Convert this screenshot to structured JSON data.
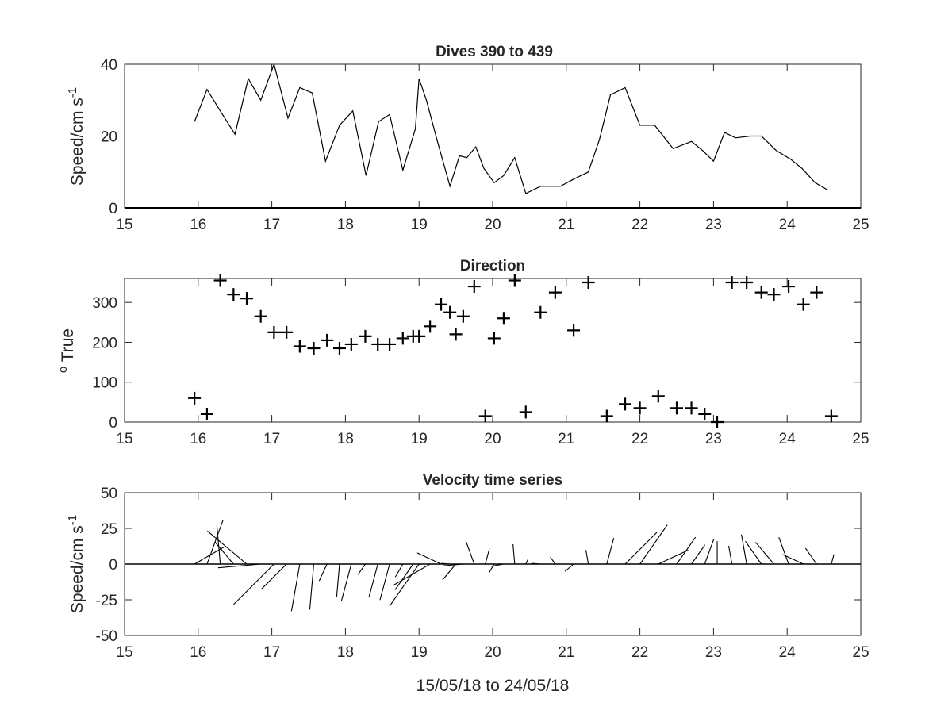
{
  "chart_data": [
    {
      "type": "line",
      "title": "Dives 390 to 439",
      "ylabel": "Speed/cm s",
      "ylabel_superscript": "-1",
      "xlabel": "",
      "xlim": [
        15,
        25
      ],
      "ylim": [
        0,
        40
      ],
      "xticks": [
        15,
        16,
        17,
        18,
        19,
        20,
        21,
        22,
        23,
        24,
        25
      ],
      "yticks": [
        0,
        20,
        40
      ],
      "grid": false,
      "series": [
        {
          "color": "#000000",
          "x": [
            15.95,
            16.12,
            16.3,
            16.5,
            16.68,
            16.85,
            17.03,
            17.22,
            17.38,
            17.55,
            17.73,
            17.92,
            18.1,
            18.28,
            18.45,
            18.6,
            18.78,
            18.95,
            19.0,
            19.1,
            19.25,
            19.42,
            19.55,
            19.65,
            19.77,
            19.88,
            20.02,
            20.15,
            20.3,
            20.45,
            20.65,
            20.85,
            20.92,
            21.1,
            21.3,
            21.45,
            21.6,
            21.8,
            22.0,
            22.2,
            22.45,
            22.7,
            22.85,
            23.0,
            23.15,
            23.3,
            23.5,
            23.65,
            23.85,
            24.05,
            24.2,
            24.38,
            24.55
          ],
          "y": [
            24,
            33,
            27,
            20.5,
            36,
            30,
            40,
            25,
            33.5,
            32,
            13,
            23,
            27,
            9,
            24,
            26,
            10.5,
            22,
            36,
            30,
            18.5,
            6,
            14.5,
            14,
            17,
            11,
            7,
            9,
            14,
            4,
            6,
            6,
            6,
            8,
            10,
            19,
            31.5,
            33.5,
            23,
            23,
            16.5,
            18.5,
            16,
            13,
            21,
            19.5,
            20,
            20,
            16,
            13.5,
            11,
            7,
            5
          ]
        }
      ]
    },
    {
      "type": "scatter",
      "title": "Direction",
      "ylabel": "True",
      "ylabel_superscript": "o",
      "xlabel": "",
      "xlim": [
        15,
        25
      ],
      "ylim": [
        0,
        360
      ],
      "xticks": [
        15,
        16,
        17,
        18,
        19,
        20,
        21,
        22,
        23,
        24,
        25
      ],
      "yticks": [
        0,
        100,
        200,
        300
      ],
      "grid": false,
      "marker": "+",
      "series": [
        {
          "color": "#000000",
          "x": [
            15.95,
            16.12,
            16.3,
            16.48,
            16.66,
            16.85,
            17.03,
            17.2,
            17.38,
            17.57,
            17.75,
            17.92,
            18.08,
            18.27,
            18.44,
            18.6,
            18.78,
            18.92,
            19.0,
            19.15,
            19.3,
            19.42,
            19.5,
            19.6,
            19.75,
            19.9,
            20.02,
            20.15,
            20.3,
            20.45,
            20.65,
            20.85,
            21.1,
            21.3,
            21.55,
            21.8,
            22.0,
            22.25,
            22.5,
            22.7,
            22.88,
            23.05,
            23.25,
            23.45,
            23.65,
            23.82,
            24.02,
            24.22,
            24.4,
            24.6
          ],
          "y": [
            60,
            20,
            355,
            320,
            310,
            265,
            225,
            225,
            190,
            185,
            205,
            185,
            195,
            215,
            195,
            195,
            210,
            215,
            215,
            240,
            295,
            275,
            220,
            265,
            340,
            15,
            210,
            260,
            355,
            25,
            275,
            325,
            230,
            350,
            15,
            45,
            35,
            65,
            35,
            35,
            20,
            0,
            350,
            350,
            325,
            320,
            340,
            295,
            325,
            15
          ]
        }
      ]
    },
    {
      "type": "line",
      "subtype": "quiver",
      "title": "Velocity time series",
      "ylabel": "Speed/cm s",
      "ylabel_superscript": "-1",
      "xlabel": "15/05/18 to 24/05/18",
      "xlim": [
        15,
        25
      ],
      "ylim": [
        -50,
        50
      ],
      "xticks": [
        15,
        16,
        17,
        18,
        19,
        20,
        21,
        22,
        23,
        24,
        25
      ],
      "yticks": [
        -50,
        -25,
        0,
        25,
        50
      ],
      "grid": false,
      "series": [
        {
          "color": "#000000",
          "x": [
            15.95,
            16.12,
            16.3,
            16.48,
            16.66,
            16.85,
            17.03,
            17.2,
            17.38,
            17.57,
            17.75,
            17.92,
            18.08,
            18.27,
            18.44,
            18.6,
            18.78,
            18.92,
            19.0,
            19.15,
            19.3,
            19.42,
            19.5,
            19.6,
            19.75,
            19.9,
            20.02,
            20.15,
            20.3,
            20.45,
            20.65,
            20.85,
            21.1,
            21.3,
            21.55,
            21.8,
            22.0,
            22.25,
            22.5,
            22.7,
            22.88,
            23.05,
            23.25,
            23.45,
            23.65,
            23.82,
            24.02,
            24.22,
            24.4,
            24.6
          ],
          "speed": [
            24,
            33,
            27,
            20.5,
            36,
            30,
            40,
            25,
            33.5,
            32,
            13,
            23,
            27,
            9,
            24,
            26,
            10.5,
            22,
            36,
            30,
            18.5,
            6,
            14.5,
            14,
            17,
            11,
            7,
            9,
            14,
            4,
            6,
            6,
            8,
            10,
            19,
            31.5,
            33.5,
            23,
            23,
            16.5,
            18.5,
            16,
            13,
            21,
            19.5,
            20,
            20,
            16,
            13.5,
            7
          ],
          "direction_deg": [
            60,
            20,
            355,
            320,
            310,
            265,
            225,
            225,
            190,
            185,
            205,
            185,
            195,
            215,
            195,
            195,
            210,
            215,
            215,
            240,
            295,
            275,
            220,
            265,
            340,
            15,
            210,
            260,
            355,
            25,
            275,
            325,
            230,
            350,
            15,
            45,
            35,
            65,
            35,
            35,
            20,
            0,
            350,
            350,
            325,
            320,
            340,
            295,
            325,
            15
          ]
        }
      ]
    }
  ]
}
